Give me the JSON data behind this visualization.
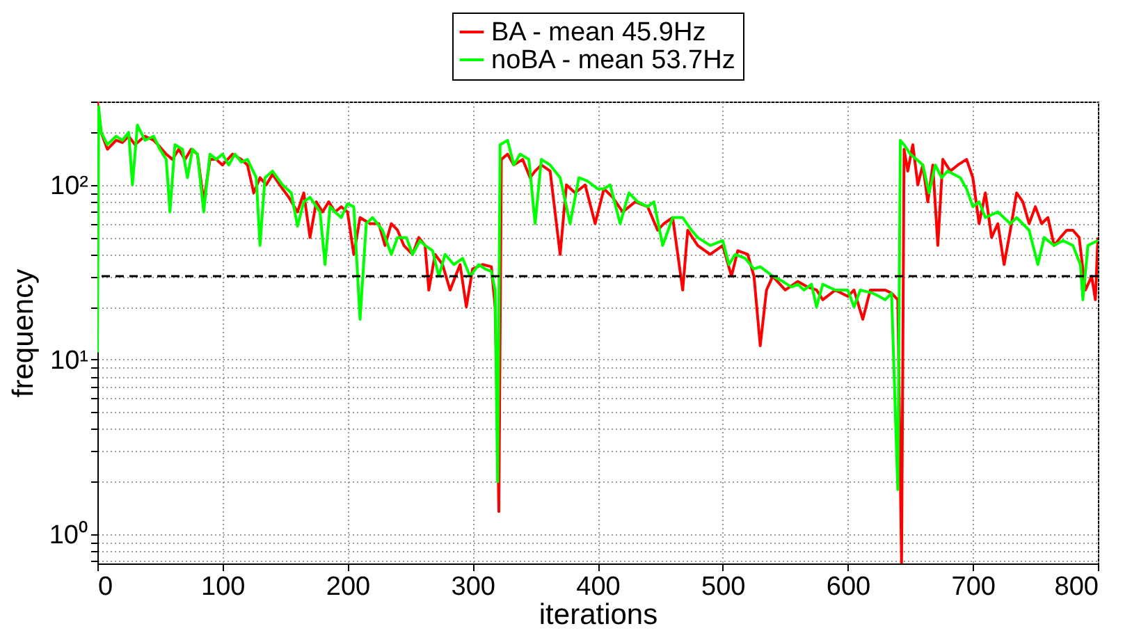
{
  "chart_data": {
    "type": "line",
    "xlabel": "iterations",
    "ylabel": "frequency",
    "log": "y",
    "grid": true,
    "legend": "top",
    "line_style": "solid",
    "xlim": [
      0,
      800
    ],
    "xticks": [
      0,
      100,
      200,
      300,
      400,
      500,
      600,
      700,
      800
    ],
    "ylim": [
      0.68,
      300
    ],
    "yticks": [
      {
        "value": 0.7,
        "label": null
      },
      {
        "value": 0.8,
        "label": null
      },
      {
        "value": 0.9,
        "label": null
      },
      {
        "value": 1,
        "label": "10⁰"
      },
      {
        "value": 2,
        "label": null
      },
      {
        "value": 3,
        "label": null
      },
      {
        "value": 4,
        "label": null
      },
      {
        "value": 5,
        "label": null
      },
      {
        "value": 6,
        "label": null
      },
      {
        "value": 7,
        "label": null
      },
      {
        "value": 8,
        "label": null
      },
      {
        "value": 9,
        "label": null
      },
      {
        "value": 10,
        "label": "10¹"
      },
      {
        "value": 20,
        "label": null
      },
      {
        "value": 30,
        "label": null
      },
      {
        "value": 40,
        "label": null
      },
      {
        "value": 50,
        "label": null
      },
      {
        "value": 60,
        "label": null
      },
      {
        "value": 70,
        "label": null
      },
      {
        "value": 80,
        "label": null
      },
      {
        "value": 90,
        "label": null
      },
      {
        "value": 100,
        "label": "10²"
      },
      {
        "value": 200,
        "label": null
      },
      {
        "value": 300,
        "label": null
      }
    ],
    "ref_lines": [
      {
        "axis": "y",
        "value": 30,
        "color": "#000000",
        "line_style": "dashed"
      }
    ],
    "series": [
      {
        "name": "BA - mean 45.9Hz",
        "color": "#ff0000",
        "x": [
          0,
          3,
          8,
          15,
          20,
          25,
          30,
          38,
          45,
          50,
          55,
          60,
          65,
          70,
          75,
          80,
          85,
          90,
          95,
          100,
          108,
          115,
          120,
          125,
          130,
          135,
          140,
          148,
          153,
          160,
          165,
          170,
          175,
          180,
          185,
          190,
          195,
          200,
          205,
          210,
          218,
          225,
          230,
          235,
          240,
          245,
          252,
          257,
          262,
          265,
          270,
          276,
          282,
          290,
          295,
          300,
          308,
          315,
          318,
          320,
          321,
          323,
          328,
          333,
          340,
          346,
          350,
          355,
          362,
          370,
          375,
          382,
          390,
          398,
          405,
          412,
          420,
          430,
          440,
          448,
          453,
          460,
          468,
          472,
          480,
          490,
          500,
          507,
          512,
          520,
          525,
          530,
          535,
          540,
          550,
          560,
          568,
          575,
          580,
          590,
          600,
          605,
          612,
          618,
          625,
          630,
          635,
          640,
          643,
          645,
          648,
          652,
          656,
          660,
          664,
          668,
          672,
          676,
          682,
          688,
          695,
          700,
          705,
          710,
          715,
          720,
          725,
          730,
          735,
          740,
          745,
          750,
          755,
          760,
          765,
          770,
          775,
          780,
          785,
          790,
          795,
          798,
          800
        ],
        "values": [
          300,
          200,
          160,
          180,
          175,
          190,
          170,
          190,
          180,
          165,
          150,
          140,
          160,
          140,
          160,
          150,
          80,
          140,
          140,
          130,
          150,
          140,
          130,
          90,
          110,
          100,
          115,
          95,
          85,
          70,
          90,
          50,
          80,
          70,
          80,
          70,
          75,
          70,
          40,
          65,
          60,
          60,
          45,
          60,
          55,
          45,
          40,
          50,
          45,
          25,
          40,
          35,
          25,
          35,
          20,
          33,
          35,
          34,
          20,
          4,
          1.35,
          140,
          150,
          130,
          140,
          110,
          120,
          130,
          120,
          40,
          100,
          90,
          100,
          60,
          95,
          85,
          70,
          80,
          75,
          55,
          60,
          65,
          25,
          55,
          45,
          40,
          45,
          30,
          42,
          40,
          30,
          12,
          25,
          30,
          25,
          28,
          26,
          25,
          22,
          25,
          23,
          25,
          17,
          25,
          25,
          25,
          24,
          22,
          0.68,
          160,
          120,
          170,
          100,
          130,
          80,
          130,
          45,
          140,
          120,
          130,
          140,
          110,
          60,
          90,
          50,
          60,
          35,
          55,
          90,
          80,
          60,
          75,
          60,
          65,
          45,
          50,
          55,
          55,
          50,
          25,
          30,
          22,
          50
        ]
      },
      {
        "name": "noBA - mean 53.7Hz",
        "color": "#00ff00",
        "x": [
          0,
          1,
          3,
          8,
          15,
          20,
          25,
          28,
          32,
          38,
          45,
          50,
          55,
          58,
          62,
          68,
          72,
          76,
          80,
          85,
          90,
          95,
          100,
          105,
          110,
          115,
          120,
          127,
          130,
          134,
          140,
          148,
          155,
          160,
          165,
          170,
          178,
          182,
          186,
          190,
          195,
          200,
          205,
          210,
          215,
          220,
          228,
          235,
          240,
          247,
          252,
          258,
          262,
          268,
          273,
          278,
          285,
          292,
          298,
          305,
          310,
          315,
          318,
          320,
          322,
          328,
          333,
          338,
          345,
          350,
          355,
          362,
          370,
          378,
          385,
          392,
          400,
          405,
          410,
          418,
          425,
          432,
          440,
          445,
          452,
          460,
          468,
          475,
          480,
          490,
          500,
          505,
          510,
          518,
          525,
          530,
          535,
          540,
          548,
          555,
          560,
          565,
          571,
          575,
          580,
          590,
          600,
          605,
          610,
          620,
          625,
          630,
          635,
          638,
          640,
          642,
          645,
          650,
          655,
          660,
          665,
          670,
          675,
          680,
          690,
          695,
          700,
          705,
          710,
          720,
          730,
          735,
          745,
          752,
          757,
          765,
          772,
          780,
          786,
          788,
          792,
          800
        ],
        "values": [
          11,
          280,
          200,
          170,
          190,
          180,
          200,
          100,
          220,
          180,
          190,
          160,
          140,
          70,
          170,
          160,
          110,
          160,
          150,
          70,
          150,
          140,
          150,
          130,
          150,
          135,
          140,
          110,
          45,
          110,
          120,
          100,
          90,
          58,
          80,
          85,
          70,
          35,
          75,
          70,
          65,
          78,
          75,
          17,
          60,
          65,
          55,
          40,
          50,
          50,
          40,
          48,
          45,
          42,
          30,
          40,
          35,
          38,
          30,
          35,
          33,
          32,
          25,
          2,
          170,
          180,
          130,
          150,
          140,
          60,
          140,
          130,
          110,
          60,
          110,
          105,
          95,
          95,
          100,
          60,
          90,
          80,
          75,
          80,
          45,
          65,
          65,
          55,
          50,
          45,
          48,
          35,
          40,
          38,
          33,
          34,
          32,
          30,
          28,
          26,
          27,
          25,
          27,
          20,
          27,
          25,
          25,
          20,
          25,
          24,
          23,
          22,
          24,
          5,
          1.8,
          180,
          170,
          150,
          140,
          130,
          90,
          130,
          110,
          120,
          110,
          95,
          75,
          80,
          65,
          70,
          60,
          65,
          55,
          35,
          50,
          45,
          48,
          45,
          35,
          22,
          45,
          48
        ]
      }
    ]
  }
}
